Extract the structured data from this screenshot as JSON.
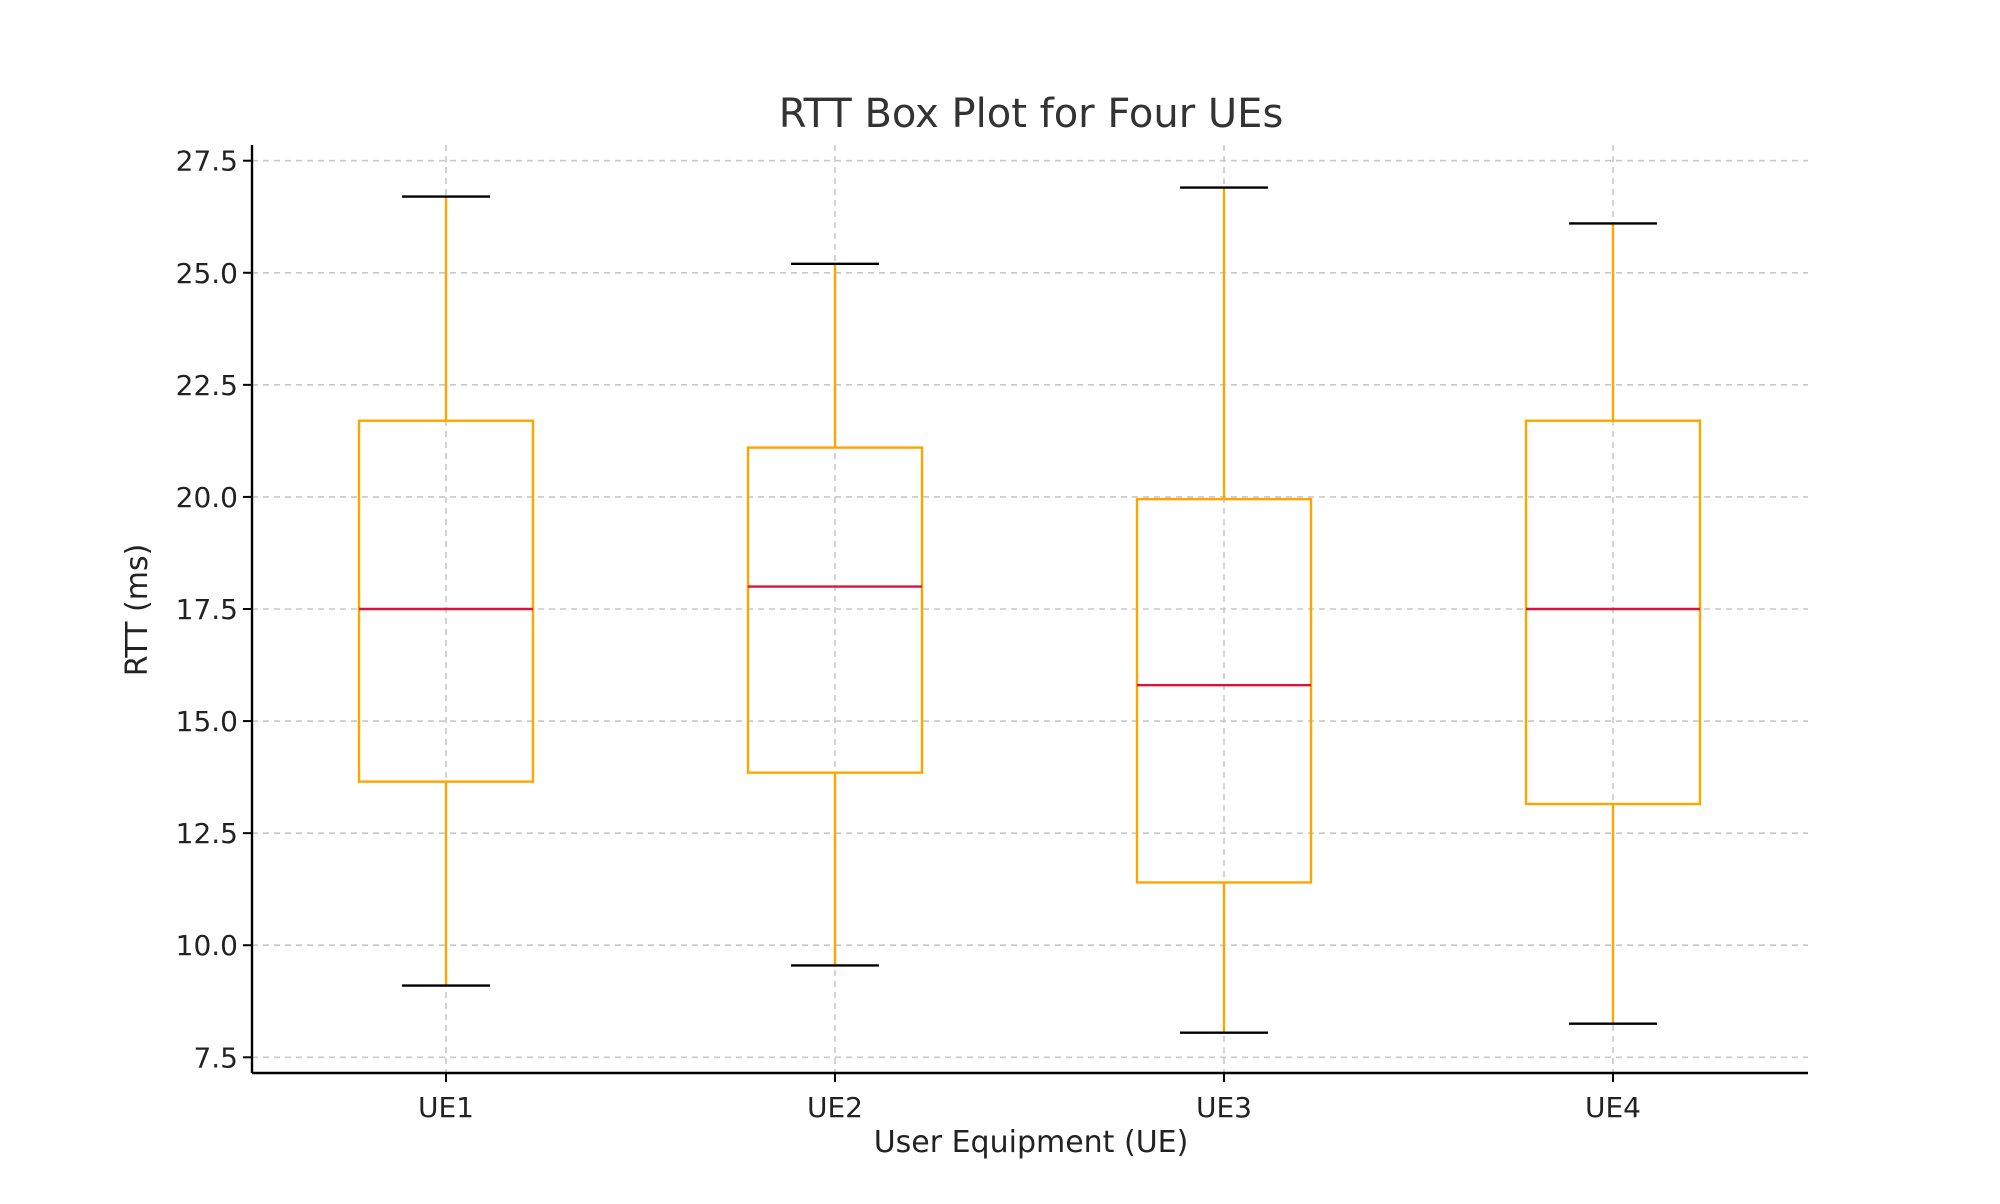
{
  "chart_data": {
    "type": "box",
    "title": "RTT Box Plot for Four UEs",
    "xlabel": "User Equipment (UE)",
    "ylabel": "RTT (ms)",
    "categories": [
      "UE1",
      "UE2",
      "UE3",
      "UE4"
    ],
    "boxes": [
      {
        "label": "UE1",
        "whisker_low": 9.1,
        "q1": 13.65,
        "median": 17.5,
        "q3": 21.7,
        "whisker_high": 26.7
      },
      {
        "label": "UE2",
        "whisker_low": 9.55,
        "q1": 13.85,
        "median": 18.0,
        "q3": 21.1,
        "whisker_high": 25.2
      },
      {
        "label": "UE3",
        "whisker_low": 8.05,
        "q1": 11.4,
        "median": 15.8,
        "q3": 19.95,
        "whisker_high": 26.9
      },
      {
        "label": "UE4",
        "whisker_low": 8.25,
        "q1": 13.15,
        "median": 17.5,
        "q3": 21.7,
        "whisker_high": 26.1
      }
    ],
    "yticks": [
      7.5,
      10.0,
      12.5,
      15.0,
      17.5,
      20.0,
      22.5,
      25.0,
      27.5
    ],
    "ytick_labels": [
      "7.5",
      "10.0",
      "12.5",
      "15.0",
      "17.5",
      "20.0",
      "22.5",
      "25.0",
      "27.5"
    ],
    "ylim": [
      7.15,
      27.85
    ],
    "grid": true,
    "colors": {
      "box": "#FFA500",
      "whisker": "#FFA500",
      "cap": "#000000",
      "median": "#DC143C",
      "grid": "#c8c8c8",
      "axis": "#000000"
    }
  }
}
